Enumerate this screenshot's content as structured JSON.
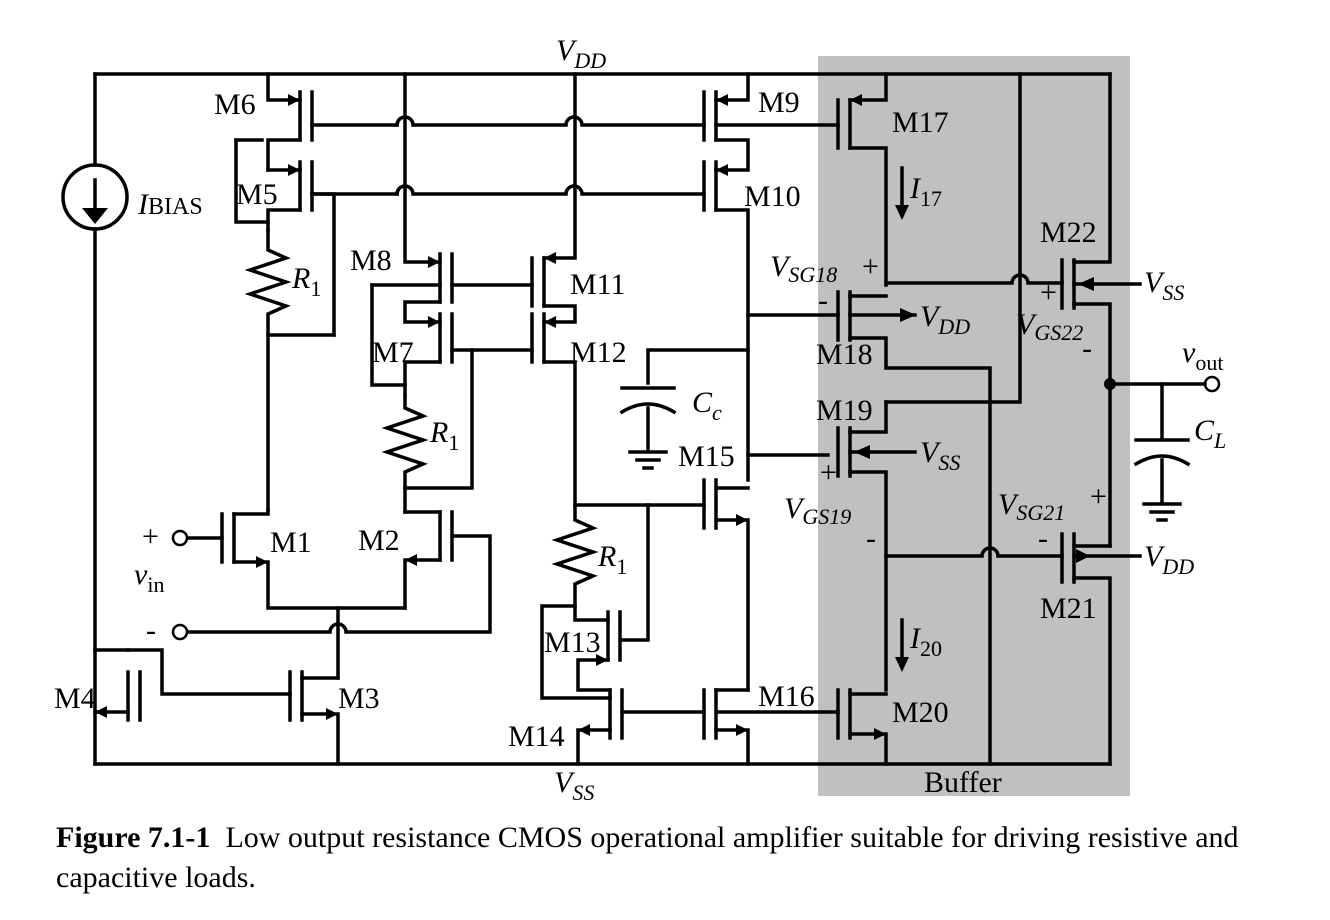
{
  "colors": {
    "buffer_fill": "#c0c0c0",
    "wire": "#000000",
    "background": "#ffffff"
  },
  "rails": {
    "vdd": "V",
    "vdd_sub": "DD",
    "vss": "V",
    "vss_sub": "SS"
  },
  "transistors": {
    "m1": "M1",
    "m2": "M2",
    "m3": "M3",
    "m4": "M4",
    "m5": "M5",
    "m6": "M6",
    "m7": "M7",
    "m8": "M8",
    "m9": "M9",
    "m10": "M10",
    "m11": "M11",
    "m12": "M12",
    "m13": "M13",
    "m14": "M14",
    "m15": "M15",
    "m16": "M16",
    "m17": "M17",
    "m18": "M18",
    "m19": "M19",
    "m20": "M20",
    "m21": "M21",
    "m22": "M22"
  },
  "components": {
    "ibias_main": "I",
    "ibias_sub": "BIAS",
    "r1_main": "R",
    "r1_sub": "1",
    "cc_main": "C",
    "cc_sub": "c",
    "cl_main": "C",
    "cl_sub": "L"
  },
  "signals": {
    "vin_main": "v",
    "vin_sub": "in",
    "vout_main": "v",
    "vout_sub": "out",
    "plus": "+",
    "minus": "-",
    "i17_main": "I",
    "i17_sub": "17",
    "i20_main": "I",
    "i20_sub": "20",
    "vsg18_main": "V",
    "vsg18_sub": "SG18",
    "vgs22_main": "V",
    "vgs22_sub": "GS22",
    "vgs19_main": "V",
    "vgs19_sub": "GS19",
    "vsg21_main": "V",
    "vsg21_sub": "SG21"
  },
  "buffer_label": "Buffer",
  "caption": {
    "number": "Figure 7.1-1",
    "text": "Low output resistance CMOS operational amplifier suitable for driving resistive and capacitive loads."
  }
}
